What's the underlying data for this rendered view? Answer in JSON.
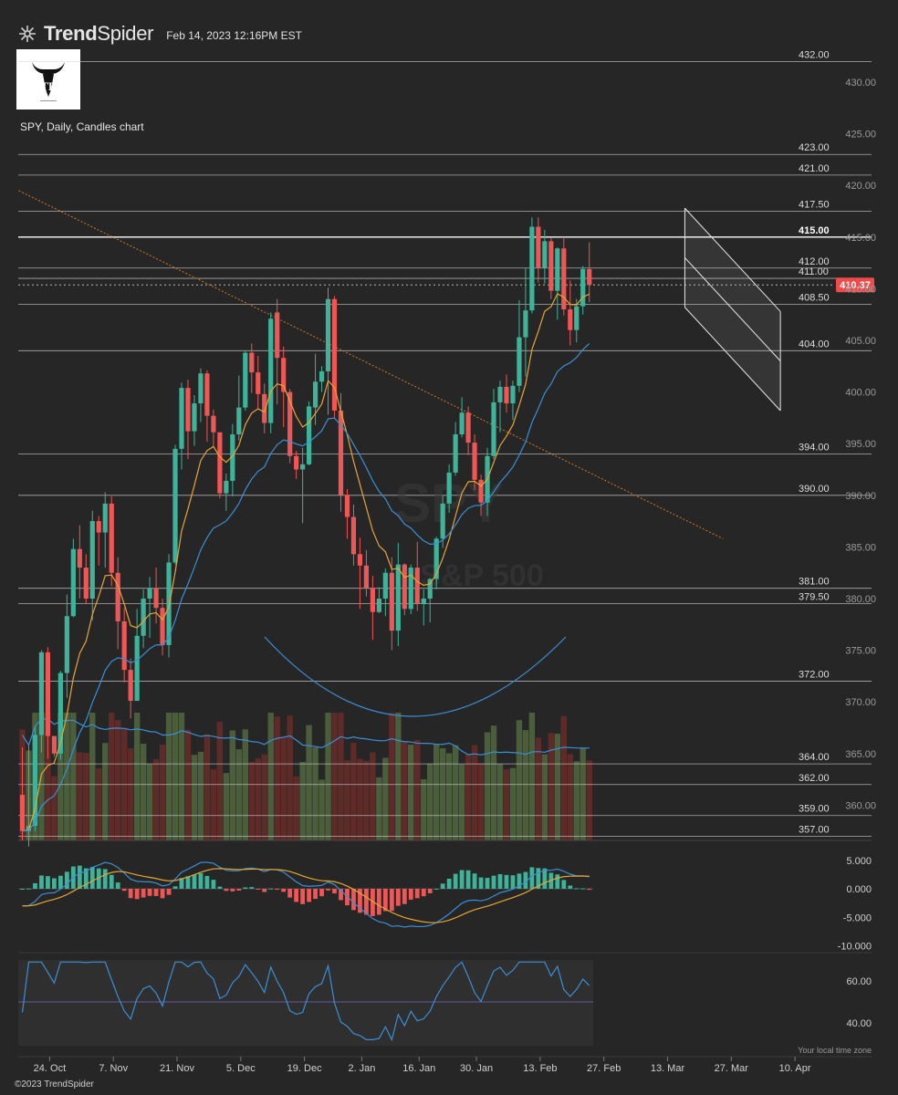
{
  "header": {
    "brand_a": "Trend",
    "brand_b": "Spider",
    "timestamp": "Feb 14, 2023 12:16PM EST",
    "logo_icon": "bull-logo-icon"
  },
  "chart_title": "SPY, Daily, Candles chart",
  "footer": "©2023 TrendSpider",
  "timezone_note": "Your local time zone",
  "chart_data": {
    "type": "candlestick",
    "watermark": [
      "SPY",
      "S&P 500"
    ],
    "price_axis": {
      "ylim": [
        356,
        433
      ],
      "ticks": [
        430,
        425,
        420,
        415,
        410,
        405,
        400,
        395,
        390,
        385,
        380,
        375,
        370,
        365,
        360
      ],
      "tick_labels": [
        "430.00",
        "425.00",
        "420.00",
        "415.00",
        "410.00",
        "405.00",
        "400.00",
        "395.00",
        "390.00",
        "385.00",
        "380.00",
        "375.00",
        "370.00",
        "365.00",
        "360.00"
      ]
    },
    "last_price": {
      "value": 410.37,
      "label": "410.37",
      "color": "#f04a4a"
    },
    "levels": [
      {
        "value": 432.0,
        "label": "432.00"
      },
      {
        "value": 423.0,
        "label": "423.00"
      },
      {
        "value": 421.0,
        "label": "421.00"
      },
      {
        "value": 417.5,
        "label": "417.50"
      },
      {
        "value": 415.0,
        "label": "415.00",
        "bold": true
      },
      {
        "value": 412.0,
        "label": "412.00"
      },
      {
        "value": 411.0,
        "label": "411.00"
      },
      {
        "value": 408.5,
        "label": "408.50"
      },
      {
        "value": 404.0,
        "label": "404.00"
      },
      {
        "value": 394.0,
        "label": "394.00"
      },
      {
        "value": 390.0,
        "label": "390.00"
      },
      {
        "value": 381.0,
        "label": "381.00"
      },
      {
        "value": 379.5,
        "label": "379.50"
      },
      {
        "value": 372.0,
        "label": "372.00"
      },
      {
        "value": 364.0,
        "label": "364.00"
      },
      {
        "value": 362.0,
        "label": "362.00"
      },
      {
        "value": 359.0,
        "label": "359.00"
      },
      {
        "value": 357.0,
        "label": "357.00"
      }
    ],
    "x_axis": {
      "labels": [
        "24. Oct",
        "7. Nov",
        "21. Nov",
        "5. Dec",
        "19. Dec",
        "2. Jan",
        "16. Jan",
        "30. Jan",
        "13. Feb",
        "27. Feb",
        "13. Mar",
        "27. Mar",
        "10. Apr"
      ],
      "label_bar_index": [
        4,
        14,
        24,
        34,
        44,
        53,
        62,
        71,
        81,
        91,
        101,
        111,
        121
      ]
    },
    "candles": [
      [
        361.0,
        365.6,
        356.6,
        357.5
      ],
      [
        357.5,
        365.8,
        356.0,
        358.0
      ],
      [
        358.0,
        367.6,
        357.5,
        366.8
      ],
      [
        366.8,
        375.0,
        365.1,
        374.8
      ],
      [
        374.8,
        375.3,
        364.5,
        366.7
      ],
      [
        366.7,
        366.7,
        364.7,
        365.0
      ],
      [
        365.0,
        373.0,
        364.4,
        372.8
      ],
      [
        372.8,
        380.4,
        370.4,
        378.3
      ],
      [
        378.3,
        385.8,
        378.2,
        384.8
      ],
      [
        384.8,
        387.1,
        380.0,
        383.0
      ],
      [
        383.0,
        384.3,
        379.5,
        380.0
      ],
      [
        380.0,
        388.5,
        377.9,
        387.5
      ],
      [
        387.5,
        388.0,
        383.2,
        386.4
      ],
      [
        386.4,
        390.3,
        383.0,
        389.2
      ],
      [
        389.2,
        389.9,
        381.2,
        382.5
      ],
      [
        382.5,
        384.0,
        375.1,
        377.8
      ],
      [
        377.8,
        379.1,
        371.9,
        373.1
      ],
      [
        373.1,
        374.2,
        368.4,
        370.1
      ],
      [
        370.1,
        379.0,
        370.1,
        376.4
      ],
      [
        376.4,
        380.9,
        375.2,
        380.0
      ],
      [
        380.0,
        382.1,
        376.2,
        381.0
      ],
      [
        381.0,
        383.0,
        377.6,
        379.1
      ],
      [
        379.1,
        380.0,
        374.5,
        375.5
      ],
      [
        375.5,
        384.3,
        374.3,
        383.5
      ],
      [
        383.5,
        394.9,
        383.3,
        394.5
      ],
      [
        394.5,
        400.9,
        392.5,
        400.4
      ],
      [
        400.4,
        401.2,
        393.5,
        396.2
      ],
      [
        396.2,
        399.7,
        394.8,
        398.9
      ],
      [
        398.9,
        402.3,
        397.1,
        401.8
      ],
      [
        401.8,
        402.1,
        395.2,
        397.7
      ],
      [
        397.7,
        398.3,
        394.6,
        396.1
      ],
      [
        396.1,
        396.1,
        389.7,
        390.2
      ],
      [
        390.2,
        392.1,
        388.5,
        391.4
      ],
      [
        391.4,
        396.9,
        389.9,
        395.9
      ],
      [
        395.9,
        401.6,
        395.3,
        398.5
      ],
      [
        398.5,
        404.0,
        398.2,
        403.8
      ],
      [
        403.8,
        404.7,
        399.9,
        401.9
      ],
      [
        401.9,
        403.5,
        398.3,
        399.8
      ],
      [
        399.8,
        400.8,
        396.0,
        397.0
      ],
      [
        397.0,
        407.7,
        396.0,
        407.1
      ],
      [
        407.7,
        409.0,
        398.8,
        403.3
      ],
      [
        403.3,
        404.4,
        396.6,
        400.0
      ],
      [
        400.0,
        400.3,
        393.1,
        393.8
      ],
      [
        393.8,
        394.3,
        391.6,
        392.5
      ],
      [
        392.5,
        394.6,
        387.3,
        393.0
      ],
      [
        393.0,
        399.1,
        392.9,
        398.6
      ],
      [
        398.5,
        403.7,
        396.8,
        401.0
      ],
      [
        401.0,
        402.5,
        400.0,
        402.0
      ],
      [
        402.0,
        410.1,
        397.8,
        409.0
      ],
      [
        409.0,
        409.3,
        397.4,
        398.2
      ],
      [
        398.2,
        399.9,
        388.4,
        390.0
      ],
      [
        390.0,
        390.6,
        385.8,
        387.9
      ],
      [
        387.9,
        389.1,
        383.2,
        384.3
      ],
      [
        384.3,
        385.9,
        379.0,
        383.2
      ],
      [
        383.2,
        384.7,
        380.2,
        381.0
      ],
      [
        381.0,
        382.2,
        376.0,
        378.7
      ],
      [
        378.7,
        381.1,
        378.6,
        380.0
      ],
      [
        380.0,
        382.9,
        378.3,
        382.5
      ],
      [
        382.5,
        384.0,
        375.0,
        376.9
      ],
      [
        376.9,
        385.4,
        375.4,
        383.3
      ],
      [
        383.3,
        383.4,
        378.4,
        379.0
      ],
      [
        379.0,
        383.3,
        378.5,
        383.0
      ],
      [
        383.0,
        385.5,
        378.8,
        379.5
      ],
      [
        379.5,
        380.9,
        377.4,
        380.0
      ],
      [
        380.0,
        382.0,
        377.7,
        381.9
      ],
      [
        381.9,
        386.0,
        380.9,
        385.8
      ],
      [
        385.8,
        390.0,
        384.9,
        389.2
      ],
      [
        389.2,
        393.0,
        388.3,
        392.2
      ],
      [
        392.2,
        397.1,
        391.9,
        395.9
      ],
      [
        395.9,
        399.5,
        395.6,
        398.0
      ],
      [
        398.0,
        398.6,
        393.9,
        395.1
      ],
      [
        395.1,
        395.9,
        390.5,
        391.5
      ],
      [
        391.5,
        392.0,
        388.0,
        389.3
      ],
      [
        389.3,
        394.6,
        388.0,
        393.8
      ],
      [
        393.8,
        400.3,
        393.5,
        399.0
      ],
      [
        399.0,
        401.1,
        396.1,
        400.5
      ],
      [
        400.5,
        401.7,
        398.0,
        398.9
      ],
      [
        398.9,
        401.1,
        397.3,
        400.6
      ],
      [
        400.6,
        408.9,
        400.0,
        405.3
      ],
      [
        405.3,
        412.0,
        401.5,
        407.9
      ],
      [
        407.9,
        416.9,
        407.6,
        416.0
      ],
      [
        416.0,
        416.9,
        410.6,
        412.0
      ],
      [
        412.0,
        415.7,
        410.5,
        414.6
      ],
      [
        414.6,
        414.9,
        409.0,
        409.8
      ],
      [
        409.8,
        414.0,
        407.0,
        413.9
      ],
      [
        413.9,
        415.0,
        407.4,
        408.0
      ],
      [
        408.0,
        410.8,
        404.5,
        406.0
      ],
      [
        406.0,
        409.0,
        404.8,
        408.3
      ],
      [
        408.3,
        412.2,
        407.5,
        411.9
      ],
      [
        411.9,
        414.5,
        408.7,
        410.37
      ]
    ],
    "line_overlays": [
      {
        "name": "short MA",
        "color": "#e8a530"
      },
      {
        "name": "long MA",
        "color": "#3a8fd8"
      }
    ],
    "trend_line": {
      "x": [
        0,
        110
      ],
      "y": [
        419.5,
        385.8
      ],
      "color": "#d8761f",
      "style": "dotted"
    },
    "channel": {
      "x": [
        104,
        119
      ],
      "upper": [
        417.8,
        407.8
      ],
      "middle": [
        413.0,
        403.0
      ],
      "lower": [
        408.2,
        398.2
      ]
    },
    "macd_axis": {
      "ticks": [
        5,
        0,
        -5,
        -10
      ],
      "tick_labels": [
        "5.000",
        "0.000",
        "-5.000",
        "-10.000"
      ]
    },
    "rsi_axis": {
      "ticks": [
        60,
        40
      ],
      "tick_labels": [
        "60.00",
        "40.00"
      ],
      "band": [
        30,
        70
      ],
      "midline": 50
    }
  }
}
